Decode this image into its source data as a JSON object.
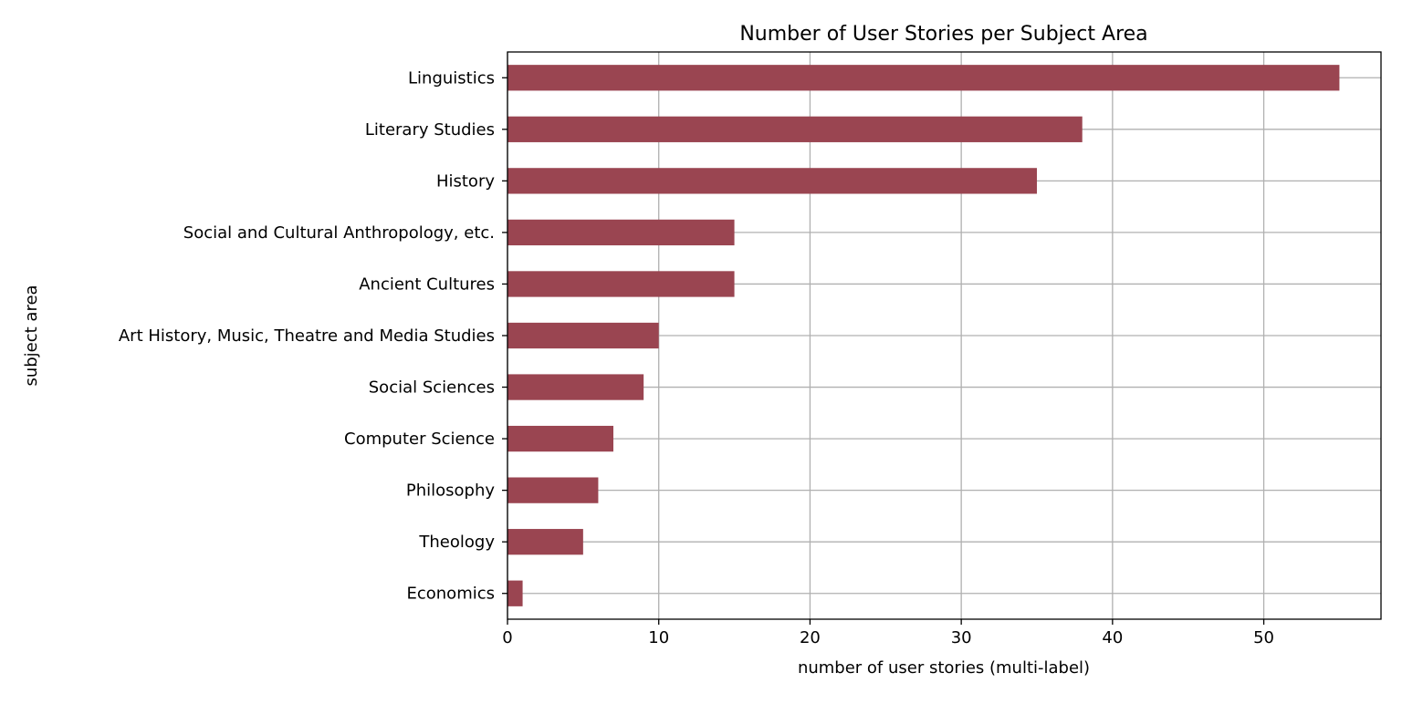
{
  "chart_data": {
    "type": "bar",
    "orientation": "horizontal",
    "title": "Number of User Stories per Subject Area",
    "xlabel": "number of user stories (multi-label)",
    "ylabel": "subject area",
    "categories": [
      "Linguistics",
      "Literary Studies",
      "History",
      "Social and Cultural Anthropology, etc.",
      "Ancient Cultures",
      "Art History, Music, Theatre and Media Studies",
      "Social Sciences",
      "Computer Science",
      "Philosophy",
      "Theology",
      "Economics"
    ],
    "values": [
      55,
      38,
      35,
      15,
      15,
      10,
      9,
      7,
      6,
      5,
      1
    ],
    "xlim": [
      0,
      57.75
    ],
    "xticks": [
      0,
      10,
      20,
      30,
      40,
      50
    ],
    "xtick_labels": [
      "0",
      "10",
      "20",
      "30",
      "40",
      "50"
    ],
    "grid": true,
    "bar_color": "#9a4551"
  }
}
